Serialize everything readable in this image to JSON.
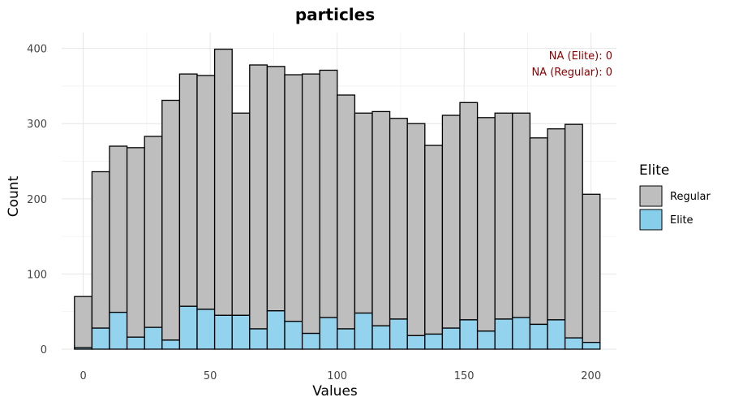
{
  "chart_data": {
    "type": "bar",
    "title": "particles",
    "xlabel": "Values",
    "ylabel": "Count",
    "xlim": [
      -8.5,
      210
    ],
    "ylim": [
      0,
      405
    ],
    "x_ticks": [
      0,
      50,
      100,
      150,
      200
    ],
    "y_ticks": [
      0,
      100,
      200,
      300,
      400
    ],
    "grid": true,
    "bin_width": 6.9,
    "bin_centers": [
      0,
      6.9,
      13.8,
      20.7,
      27.6,
      34.5,
      41.4,
      48.3,
      55.2,
      62.1,
      69.0,
      75.9,
      82.8,
      89.7,
      96.6,
      103.5,
      110.4,
      117.3,
      124.2,
      131.1,
      138.0,
      144.9,
      151.8,
      158.7,
      165.6,
      172.5,
      179.4,
      186.3,
      193.2,
      200.1
    ],
    "series": [
      {
        "name": "Regular",
        "color": "#bebebe",
        "values": [
          68,
          208,
          221,
          252,
          254,
          319,
          309,
          311,
          354,
          269,
          351,
          325,
          328,
          345,
          329,
          311,
          266,
          285,
          267,
          282,
          251,
          283,
          289,
          284,
          274,
          272,
          248,
          254,
          284,
          197
        ]
      },
      {
        "name": "Elite",
        "color": "#87ceeb",
        "values": [
          2,
          28,
          49,
          16,
          29,
          12,
          57,
          53,
          45,
          45,
          27,
          51,
          37,
          21,
          42,
          27,
          48,
          31,
          40,
          18,
          20,
          28,
          39,
          24,
          40,
          42,
          33,
          39,
          15,
          9
        ]
      }
    ],
    "stacked": true,
    "legend": {
      "title": "Elite",
      "position": "right",
      "entries": [
        "Regular",
        "Elite"
      ]
    },
    "annotations": [
      "NA (Elite): 0",
      "NA (Regular): 0"
    ]
  }
}
